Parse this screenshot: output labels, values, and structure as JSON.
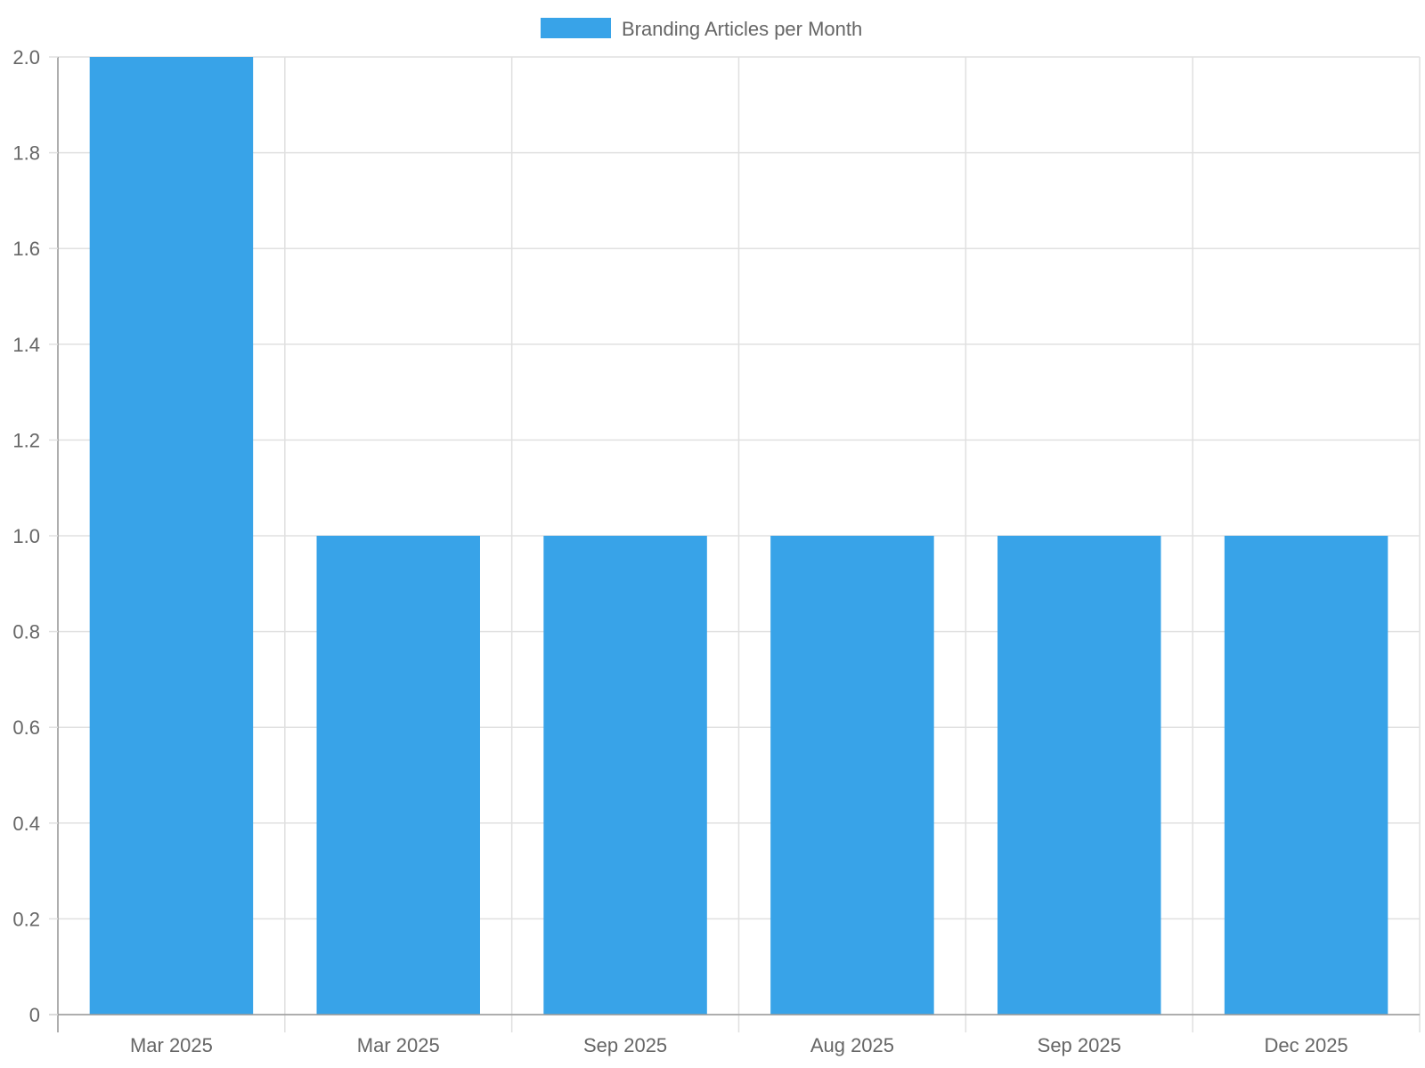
{
  "chart_data": {
    "type": "bar",
    "categories": [
      "Mar 2025",
      "Mar 2025",
      "Sep 2025",
      "Aug 2025",
      "Sep 2025",
      "Dec 2025"
    ],
    "series": [
      {
        "name": "Branding Articles per Month",
        "values": [
          2,
          1,
          1,
          1,
          1,
          1
        ],
        "color": "#38a3e8"
      }
    ],
    "ylim": [
      0,
      2.0
    ],
    "yticks": [
      "0",
      "0.2",
      "0.4",
      "0.6",
      "0.8",
      "1.0",
      "1.2",
      "1.4",
      "1.6",
      "1.8",
      "2.0"
    ],
    "grid": true,
    "legend_position": "top-center"
  },
  "colors": {
    "bar": "#38a3e8",
    "grid": "#e0e0e0",
    "axis": "#999999",
    "text": "#666666"
  }
}
